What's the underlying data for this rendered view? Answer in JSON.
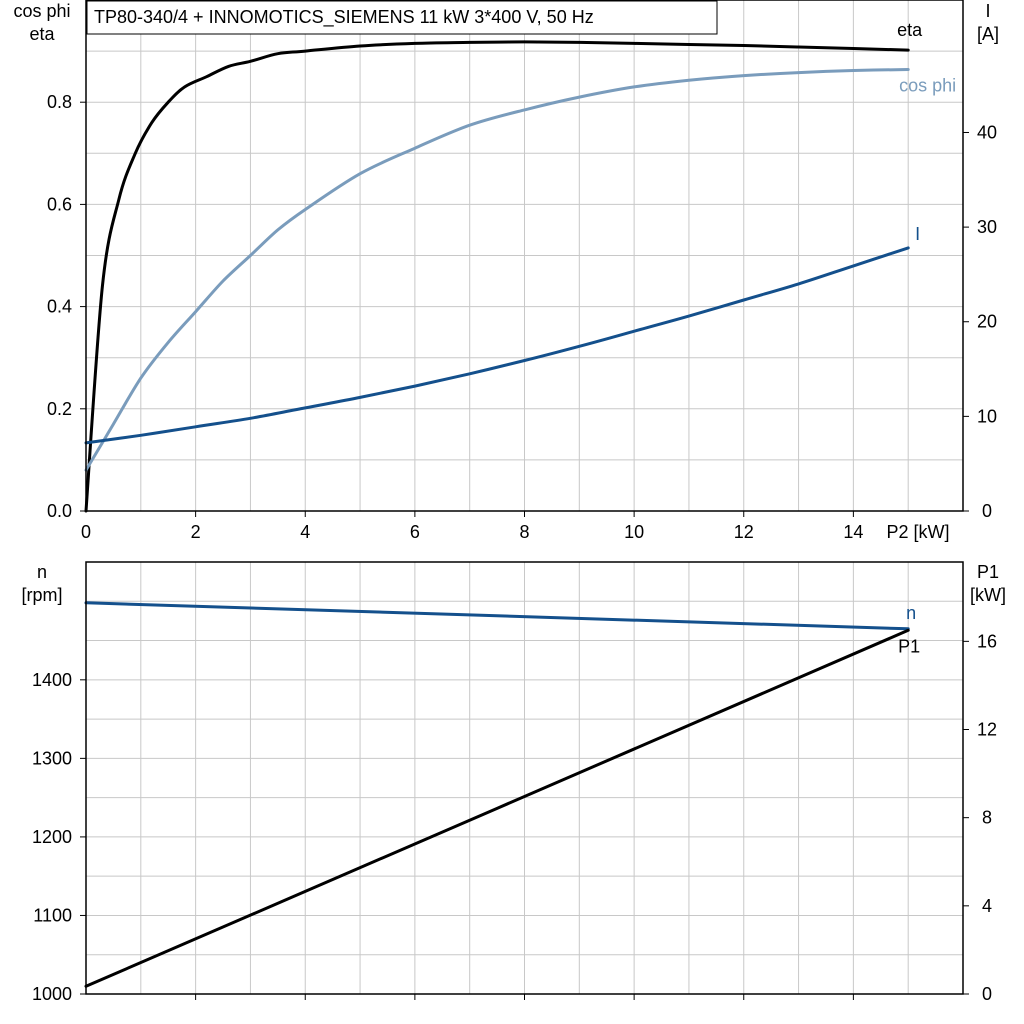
{
  "title": "TP80-340/4 + INNOMOTICS_SIEMENS   11 kW   3*400 V, 50 Hz",
  "chart_data": [
    {
      "type": "line",
      "x_label": "P2 [kW]",
      "x_range": [
        0,
        16
      ],
      "x_ticks": [
        "0",
        "2",
        "4",
        "6",
        "8",
        "10",
        "12",
        "14"
      ],
      "left_axis": {
        "label_line1": "cos phi",
        "label_line2": "eta",
        "range": [
          0,
          1.0
        ],
        "ticks": [
          "0.0",
          "0.2",
          "0.4",
          "0.6",
          "0.8"
        ]
      },
      "right_axis": {
        "label_line1": "I",
        "label_line2": "[A]",
        "range": [
          0,
          54
        ],
        "ticks": [
          "0",
          "10",
          "20",
          "30",
          "40"
        ]
      },
      "grid": true,
      "series": [
        {
          "name": "eta",
          "axis": "left",
          "color": "#000000",
          "x": [
            0,
            0.3,
            0.6,
            0.9,
            1.2,
            1.5,
            1.8,
            2.2,
            2.6,
            3.0,
            3.5,
            4.0,
            5.0,
            6.0,
            7.0,
            8.0,
            9.0,
            10.0,
            11.0,
            12.0,
            13.0,
            14.0,
            15.0
          ],
          "y": [
            0.0,
            0.44,
            0.61,
            0.7,
            0.76,
            0.8,
            0.83,
            0.85,
            0.87,
            0.88,
            0.895,
            0.9,
            0.91,
            0.915,
            0.917,
            0.918,
            0.917,
            0.915,
            0.913,
            0.911,
            0.908,
            0.905,
            0.902
          ]
        },
        {
          "name": "cos phi",
          "axis": "left",
          "color": "#7a9cbc",
          "x": [
            0,
            0.5,
            1.0,
            1.5,
            2.0,
            2.5,
            3.0,
            3.5,
            4.0,
            5.0,
            6.0,
            7.0,
            8.0,
            9.0,
            10.0,
            11.0,
            12.0,
            13.0,
            14.0,
            15.0
          ],
          "y": [
            0.08,
            0.17,
            0.26,
            0.33,
            0.39,
            0.45,
            0.5,
            0.55,
            0.59,
            0.66,
            0.71,
            0.755,
            0.785,
            0.81,
            0.83,
            0.843,
            0.852,
            0.858,
            0.862,
            0.864
          ]
        },
        {
          "name": "I",
          "axis": "right",
          "color": "#14508c",
          "x": [
            0,
            1,
            2,
            3,
            4,
            5,
            6,
            7,
            8,
            9,
            10,
            11,
            12,
            13,
            14,
            15
          ],
          "y": [
            7.2,
            8.0,
            8.9,
            9.8,
            10.9,
            12.0,
            13.2,
            14.5,
            15.9,
            17.4,
            19.0,
            20.6,
            22.3,
            24.0,
            25.9,
            27.8
          ]
        }
      ]
    },
    {
      "type": "line",
      "x_range": [
        0,
        16
      ],
      "left_axis": {
        "label_line1": "n",
        "label_line2": "[rpm]",
        "range": [
          1000,
          1550
        ],
        "ticks": [
          "1000",
          "1100",
          "1200",
          "1300",
          "1400"
        ]
      },
      "right_axis": {
        "label_line1": "P1",
        "label_line2": "[kW]",
        "range": [
          0,
          19.6
        ],
        "ticks": [
          "0",
          "4",
          "8",
          "12",
          "16"
        ]
      },
      "grid": true,
      "series": [
        {
          "name": "n",
          "axis": "left",
          "color": "#14508c",
          "x": [
            0,
            15
          ],
          "y": [
            1498,
            1465
          ]
        },
        {
          "name": "P1",
          "axis": "right",
          "color": "#000000",
          "x": [
            0,
            15
          ],
          "y": [
            0.35,
            16.5
          ]
        }
      ]
    }
  ]
}
